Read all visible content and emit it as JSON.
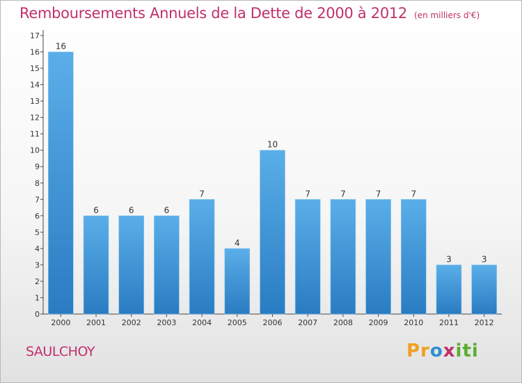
{
  "title": "Remboursements Annuels de la Dette de 2000 à 2012",
  "subtitle": "(en milliers d'€)",
  "place_name": "SAULCHOY",
  "brand": {
    "text": "Proxiti",
    "parts": [
      "Pr",
      "o",
      "x",
      "iti"
    ],
    "colors": [
      "#f0a020",
      "#2e8fd0",
      "#c0306a",
      "#5aae2e"
    ]
  },
  "colors": {
    "title": "#c0306a",
    "bar_light": "#5aaee8",
    "bar_dark": "#2a7cc2",
    "axis": "#333333"
  },
  "chart_data": {
    "type": "bar",
    "title": "Remboursements Annuels de la Dette de 2000 à 2012",
    "subtitle": "(en milliers d'€)",
    "categories": [
      "2000",
      "2001",
      "2002",
      "2003",
      "2004",
      "2005",
      "2006",
      "2007",
      "2008",
      "2009",
      "2010",
      "2011",
      "2012"
    ],
    "values": [
      16,
      6,
      6,
      6,
      7,
      4,
      10,
      7,
      7,
      7,
      7,
      3,
      3
    ],
    "ylim": [
      0,
      17
    ],
    "yticks": [
      0,
      1,
      2,
      3,
      4,
      5,
      6,
      7,
      8,
      9,
      10,
      11,
      12,
      13,
      14,
      15,
      16,
      17
    ],
    "grid": false,
    "legend": "none"
  }
}
